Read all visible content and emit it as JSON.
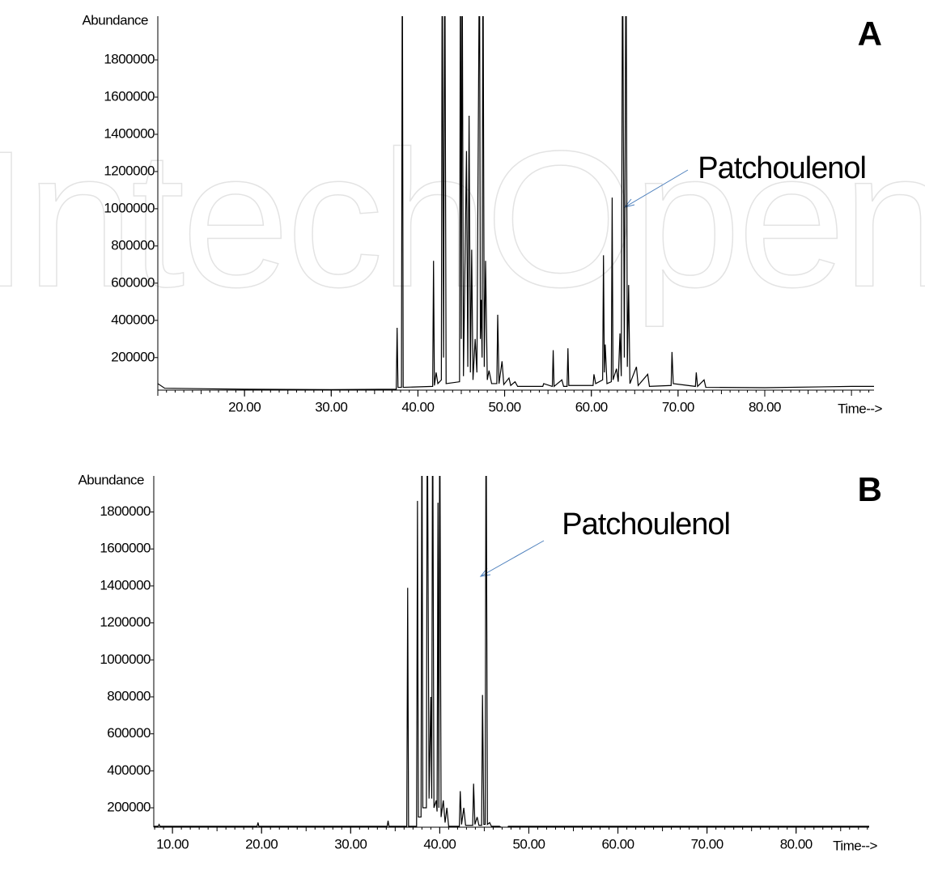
{
  "watermark": "IntechOpen",
  "chart_data": [
    {
      "type": "line",
      "panel": "A",
      "ylabel": "Abundance",
      "xlabel": "Time-->",
      "annotation": "Patchoulenol",
      "color": "#000000",
      "xlim": [
        10,
        92.6
      ],
      "ylim": [
        25000,
        2035000
      ],
      "xticks": [
        {
          "value": 20,
          "label": "20.00"
        },
        {
          "value": 30,
          "label": "30.00"
        },
        {
          "value": 40,
          "label": "40.00"
        },
        {
          "value": 50,
          "label": "50.00"
        },
        {
          "value": 60,
          "label": "60.00"
        },
        {
          "value": 70,
          "label": "70.00"
        },
        {
          "value": 80,
          "label": "80.00"
        }
      ],
      "yticks": [
        200000,
        400000,
        600000,
        800000,
        1000000,
        1200000,
        1400000,
        1600000,
        1800000
      ],
      "x": [
        10,
        10.8,
        20,
        30,
        37.5,
        37.6,
        37.7,
        38.1,
        38.2,
        38.3,
        41.7,
        41.8,
        41.9,
        42.1,
        42.3,
        42.7,
        42.8,
        42.95,
        43.1,
        43.25,
        44.8,
        44.9,
        45.0,
        45.1,
        45.25,
        45.6,
        45.75,
        45.9,
        46.05,
        46.2,
        46.35,
        46.6,
        46.8,
        47.1,
        47.2,
        47.3,
        47.4,
        47.5,
        47.65,
        47.8,
        48.0,
        48.2,
        48.5,
        49.1,
        49.2,
        49.35,
        49.7,
        49.9,
        50.5,
        50.7,
        51.2,
        51.5,
        54.4,
        54.5,
        55.5,
        55.6,
        55.7,
        56.6,
        56.8,
        57.2,
        57.3,
        57.4,
        60.2,
        60.3,
        60.5,
        61.3,
        61.4,
        61.5,
        61.6,
        61.8,
        62.3,
        62.4,
        62.5,
        62.9,
        63.1,
        63.3,
        63.45,
        63.6,
        63.8,
        64.0,
        64.15,
        64.3,
        64.45,
        65.2,
        65.4,
        66.5,
        66.7,
        69.2,
        69.3,
        69.45,
        72.0,
        72.1,
        72.25,
        73.0,
        73.2,
        80,
        90,
        92.6
      ],
      "values": [
        60000,
        35000,
        30000,
        28000,
        30000,
        360000,
        40000,
        40000,
        2500000,
        40000,
        45000,
        720000,
        50000,
        120000,
        60000,
        80000,
        2500000,
        200000,
        2500000,
        60000,
        70000,
        2500000,
        300000,
        2500000,
        100000,
        1310000,
        150000,
        1500000,
        120000,
        780000,
        80000,
        300000,
        120000,
        2500000,
        300000,
        510000,
        200000,
        2500000,
        150000,
        720000,
        80000,
        130000,
        60000,
        60000,
        430000,
        60000,
        180000,
        55000,
        90000,
        50000,
        70000,
        45000,
        45000,
        60000,
        45000,
        240000,
        45000,
        80000,
        45000,
        45000,
        250000,
        50000,
        50000,
        110000,
        60000,
        80000,
        750000,
        120000,
        270000,
        60000,
        70000,
        1060000,
        80000,
        140000,
        70000,
        330000,
        100000,
        2500000,
        200000,
        2500000,
        150000,
        590000,
        60000,
        150000,
        50000,
        110000,
        45000,
        50000,
        230000,
        60000,
        45000,
        120000,
        45000,
        80000,
        40000,
        38000,
        45000,
        45000
      ]
    },
    {
      "type": "line",
      "panel": "B",
      "ylabel": "Abundance",
      "xlabel": "Time-->",
      "annotation": "Patchoulenol",
      "color": "#000000",
      "xlim": [
        7.9,
        88.2
      ],
      "ylim": [
        95000,
        1995000
      ],
      "xticks": [
        {
          "value": 10,
          "label": "10.00"
        },
        {
          "value": 20,
          "label": "20.00"
        },
        {
          "value": 30,
          "label": "30.00"
        },
        {
          "value": 40,
          "label": "40.00"
        },
        {
          "value": 50,
          "label": "50.00"
        },
        {
          "value": 60,
          "label": "60.00"
        },
        {
          "value": 70,
          "label": "70.00"
        },
        {
          "value": 80,
          "label": "80.00"
        }
      ],
      "yticks": [
        200000,
        400000,
        600000,
        800000,
        1000000,
        1200000,
        1400000,
        1600000,
        1800000
      ],
      "x": [
        7.9,
        8.4,
        8.5,
        8.6,
        19.5,
        19.6,
        19.7,
        34.1,
        34.2,
        34.3,
        36.3,
        36.4,
        36.5,
        37.4,
        37.5,
        37.6,
        37.9,
        38.0,
        38.1,
        38.5,
        38.6,
        38.8,
        39.0,
        39.1,
        39.2,
        39.35,
        39.6,
        39.7,
        39.8,
        39.9,
        40.0,
        40.15,
        40.4,
        40.6,
        40.8,
        41.0,
        42.2,
        42.3,
        42.45,
        42.7,
        42.9,
        43.7,
        43.8,
        43.95,
        44.2,
        44.4,
        44.7,
        44.8,
        44.95,
        45.1,
        45.2,
        45.35,
        45.6,
        45.8,
        46.5,
        46.7,
        47.5,
        47.7,
        60,
        88.2
      ],
      "values": [
        100000,
        100000,
        110000,
        100000,
        100000,
        120000,
        100000,
        100000,
        130000,
        100000,
        100000,
        1390000,
        100000,
        100000,
        1860000,
        150000,
        150000,
        2500000,
        200000,
        200000,
        2500000,
        250000,
        800000,
        250000,
        2500000,
        200000,
        240000,
        180000,
        1850000,
        200000,
        2500000,
        150000,
        240000,
        120000,
        200000,
        100000,
        100000,
        290000,
        110000,
        200000,
        105000,
        105000,
        330000,
        110000,
        150000,
        105000,
        105000,
        810000,
        110000,
        110000,
        2500000,
        110000,
        120000,
        100000,
        100000,
        100000,
        80000,
        100000,
        100000,
        100000
      ]
    }
  ]
}
